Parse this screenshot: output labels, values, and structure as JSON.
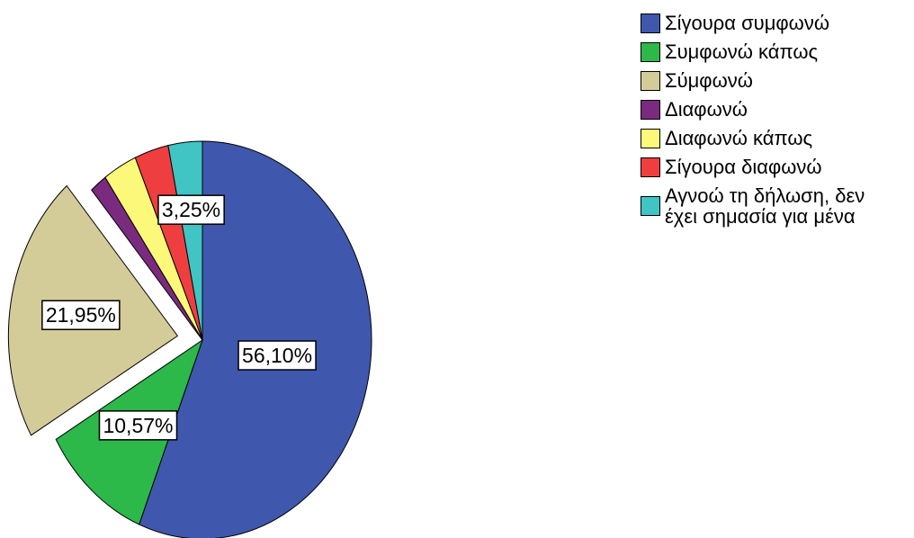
{
  "chart_data": {
    "type": "pie",
    "categories": [
      "Σίγουρα συμφωνώ",
      "Συμφωνώ κάπως",
      "Σύμφωνώ",
      "Διαφωνώ",
      "Διαφωνώ κάπως",
      "Σίγουρα διαφωνώ",
      "Αγνοώ τη δήλωση, δεν έχει σημασία για μένα"
    ],
    "values": [
      56.1,
      10.57,
      21.95,
      1.63,
      3.25,
      3.25,
      3.25
    ],
    "value_labels": [
      "56,10%",
      "10,57%",
      "21,95%",
      null,
      null,
      null,
      "3,25%"
    ],
    "colors": [
      "#3f58ad",
      "#2db84a",
      "#d4cc98",
      "#7a2a7f",
      "#fcf97a",
      "#ef3e3f",
      "#40c4c4"
    ],
    "exploded": [
      false,
      false,
      true,
      false,
      false,
      false,
      false
    ],
    "legend": "top-right"
  }
}
